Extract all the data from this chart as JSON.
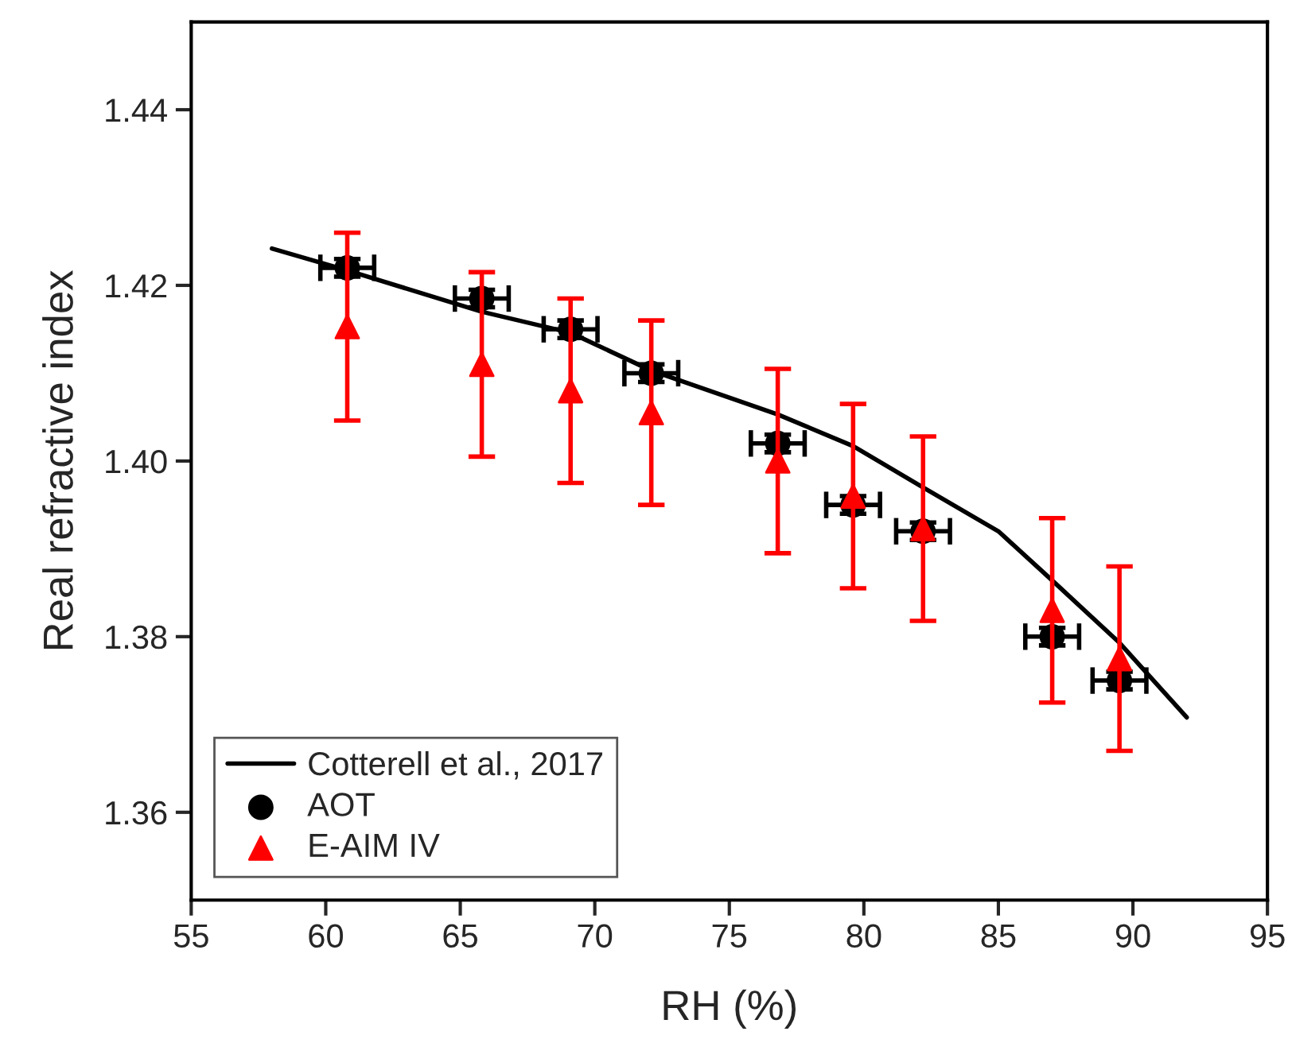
{
  "chart_data": {
    "type": "scatter",
    "xlabel": "RH (%)",
    "ylabel": "Real refractive index",
    "xlim": [
      55,
      95
    ],
    "xticks": [
      55,
      60,
      65,
      70,
      75,
      80,
      85,
      90,
      95
    ],
    "ylim": [
      1.35,
      1.45
    ],
    "yticks": [
      {
        "value": 1.36,
        "label": "1.36"
      },
      {
        "value": 1.38,
        "label": "1.38"
      },
      {
        "value": 1.4,
        "label": "1.40"
      },
      {
        "value": 1.42,
        "label": "1.42"
      },
      {
        "value": 1.44,
        "label": "1.44"
      }
    ],
    "grid": false,
    "legend": "bottom left",
    "series": [
      {
        "name": "Cotterell et al., 2017",
        "type": "line",
        "color": "#000000",
        "marker": "none",
        "line_style": "solid",
        "x": [
          58,
          60.8,
          65.8,
          69.1,
          72.1,
          76.8,
          79.6,
          82.2,
          85,
          87,
          89.5,
          92
        ],
        "values": [
          1.4242,
          1.4217,
          1.417,
          1.4146,
          1.4103,
          1.4053,
          1.4017,
          1.397,
          1.392,
          1.3864,
          1.3793,
          1.3708
        ]
      },
      {
        "name": "AOT",
        "color": "#000000",
        "marker": "circle",
        "x": [
          60.8,
          65.8,
          69.1,
          72.1,
          76.8,
          79.6,
          82.2,
          87.0,
          89.5
        ],
        "values": [
          1.422,
          1.4185,
          1.415,
          1.41,
          1.402,
          1.395,
          1.392,
          1.38,
          1.375
        ],
        "errors": [
          0.001,
          0.001,
          0.001,
          0.001,
          0.001,
          0.001,
          0.001,
          0.001,
          0.001
        ],
        "xerrors": [
          1,
          1,
          1,
          1,
          1,
          1,
          1,
          1,
          1
        ]
      },
      {
        "name": "E-AIM IV",
        "color": "#ff0000",
        "marker": "triangle",
        "x": [
          60.8,
          65.8,
          69.1,
          72.1,
          76.8,
          79.6,
          82.2,
          87.0,
          89.5
        ],
        "values": [
          1.4153,
          1.411,
          1.408,
          1.4055,
          1.4,
          1.396,
          1.3923,
          1.383,
          1.3775
        ],
        "errors": [
          0.0107,
          0.0105,
          0.0105,
          0.0105,
          0.0105,
          0.0105,
          0.0105,
          0.0105,
          0.0105
        ]
      }
    ]
  }
}
